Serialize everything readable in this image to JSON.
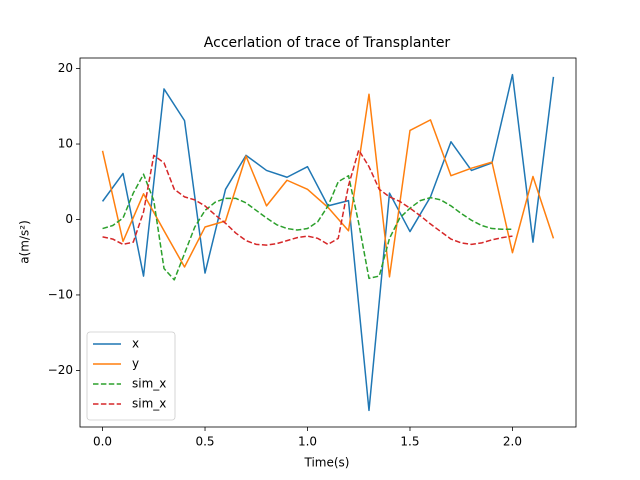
{
  "chart_data": {
    "type": "line",
    "title": "Accerlation of trace of Transplanter",
    "xlabel": "Time(s)",
    "ylabel": "a(m/s²)",
    "xlim": [
      -0.11,
      2.31
    ],
    "ylim": [
      -27.5,
      21.4
    ],
    "xticks": [
      {
        "value": 0,
        "label": "0.0"
      },
      0.5,
      {
        "value": 1,
        "label": "1.0"
      },
      1.5,
      {
        "value": 2,
        "label": "2.0"
      }
    ],
    "yticks": [
      {
        "value": -20,
        "label": "−20"
      },
      {
        "value": -10,
        "label": "−10"
      },
      0,
      10,
      20
    ],
    "legend": "lower left",
    "series": [
      {
        "name": "x",
        "color": "#1f77b4",
        "style": "solid",
        "x": [
          0,
          0.1,
          0.2,
          0.3,
          0.4,
          0.5,
          0.6,
          0.7,
          0.8,
          0.9,
          1.0,
          1.1,
          1.2,
          1.3,
          1.4,
          1.5,
          1.6,
          1.7,
          1.8,
          1.9,
          2.0,
          2.1,
          2.2
        ],
        "values": [
          2.4,
          6.1,
          -7.5,
          17.3,
          13.1,
          -7.1,
          4.0,
          8.5,
          6.5,
          5.6,
          7.0,
          1.8,
          2.5,
          -25.3,
          3.5,
          -1.6,
          3.0,
          10.3,
          6.5,
          7.5,
          19.2,
          -3.0,
          18.9
        ]
      },
      {
        "name": "y",
        "color": "#ff7f0e",
        "style": "solid",
        "x": [
          0,
          0.1,
          0.2,
          0.3,
          0.4,
          0.5,
          0.6,
          0.7,
          0.8,
          0.9,
          1.0,
          1.1,
          1.2,
          1.3,
          1.4,
          1.5,
          1.6,
          1.7,
          1.8,
          1.9,
          2.0,
          2.1,
          2.2
        ],
        "values": [
          9.1,
          -2.9,
          3.4,
          -1.5,
          -6.3,
          -1.0,
          -0.2,
          8.4,
          1.8,
          5.2,
          4.0,
          1.6,
          -1.5,
          16.6,
          -7.6,
          11.8,
          13.2,
          5.8,
          6.8,
          7.6,
          -4.4,
          5.7,
          -2.5
        ]
      },
      {
        "name": "sim_x",
        "color": "#2ca02c",
        "style": "dashed",
        "x": [
          0,
          0.05,
          0.1,
          0.15,
          0.2,
          0.25,
          0.3,
          0.35,
          0.4,
          0.45,
          0.5,
          0.55,
          0.6,
          0.65,
          0.7,
          0.75,
          0.8,
          0.85,
          0.9,
          0.95,
          1.0,
          1.05,
          1.1,
          1.15,
          1.2,
          1.25,
          1.3,
          1.35,
          1.4,
          1.45,
          1.5,
          1.55,
          1.6,
          1.65,
          1.7,
          1.75,
          1.8,
          1.85,
          1.9,
          1.95,
          2.0
        ],
        "values": [
          -1.2,
          -0.8,
          0.2,
          3.5,
          6.0,
          2.5,
          -6.5,
          -8.0,
          -4.5,
          -1.0,
          1.2,
          2.3,
          2.8,
          2.8,
          2.2,
          1.2,
          0.2,
          -0.7,
          -1.2,
          -1.4,
          -1.2,
          -0.3,
          1.8,
          5.0,
          5.8,
          -0.5,
          -7.8,
          -7.5,
          -2.5,
          0.2,
          1.5,
          2.5,
          2.9,
          2.6,
          1.8,
          0.8,
          -0.1,
          -0.8,
          -1.2,
          -1.3,
          -1.3
        ]
      },
      {
        "name": "sim_x",
        "color": "#d62728",
        "style": "dashed",
        "x": [
          0,
          0.05,
          0.1,
          0.15,
          0.2,
          0.25,
          0.3,
          0.35,
          0.4,
          0.45,
          0.5,
          0.55,
          0.6,
          0.65,
          0.7,
          0.75,
          0.8,
          0.85,
          0.9,
          0.95,
          1.0,
          1.05,
          1.1,
          1.15,
          1.2,
          1.25,
          1.3,
          1.35,
          1.4,
          1.45,
          1.5,
          1.55,
          1.6,
          1.65,
          1.7,
          1.75,
          1.8,
          1.85,
          1.9,
          1.95,
          2.0
        ],
        "values": [
          -2.3,
          -2.6,
          -3.3,
          -3.0,
          1.0,
          8.5,
          7.5,
          4.0,
          3.0,
          2.6,
          1.8,
          0.6,
          -0.5,
          -1.8,
          -2.8,
          -3.3,
          -3.4,
          -3.2,
          -2.8,
          -2.4,
          -2.2,
          -2.5,
          -3.3,
          -2.5,
          4.5,
          9.2,
          7.0,
          4.0,
          3.0,
          2.4,
          1.5,
          0.5,
          -0.6,
          -1.6,
          -2.6,
          -3.1,
          -3.3,
          -3.1,
          -2.7,
          -2.4,
          -2.2
        ]
      }
    ]
  }
}
